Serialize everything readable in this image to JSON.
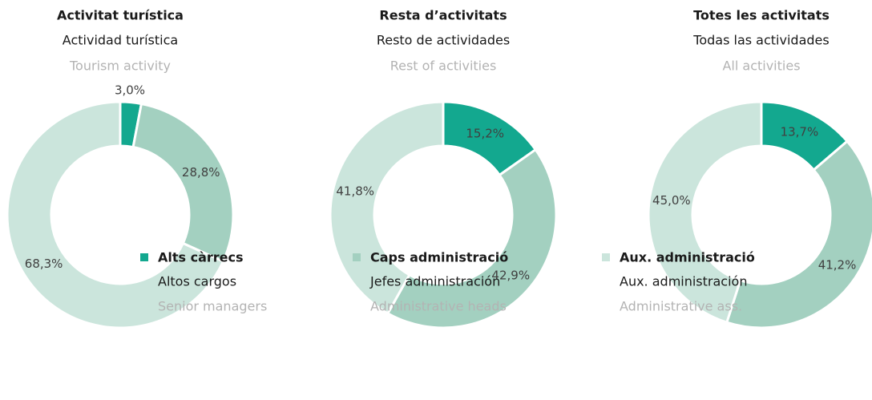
{
  "legend": [
    {
      "name": "Alts càrrecs",
      "name_es": "Altos cargos",
      "name_en": "Senior managers",
      "color": "#13a88f"
    },
    {
      "name": "Caps administració",
      "name_es": "Jefes administración",
      "name_en": "Administrative heads",
      "color": "#a3d0c0"
    },
    {
      "name": "Aux. administració",
      "name_es": "Aux. administración",
      "name_en": "Administrative ass.",
      "color": "#cbe5dc"
    }
  ],
  "chart_data": [
    {
      "type": "pie",
      "title": "Activitat turística",
      "subtitle": "Actividad turística",
      "subtitle_en": "Tourism activity",
      "values": [
        3.0,
        28.8,
        68.3
      ],
      "value_labels": [
        "3,0%",
        "28,8%",
        "68,3%"
      ]
    },
    {
      "type": "pie",
      "title": "Resta d’activitats",
      "subtitle": "Resto de actividades",
      "subtitle_en": "Rest of activities",
      "values": [
        15.2,
        42.9,
        41.8
      ],
      "value_labels": [
        "15,2%",
        "42,9%",
        "41,8%"
      ]
    },
    {
      "type": "pie",
      "title": "Totes les activitats",
      "subtitle": "Todas las actividades",
      "subtitle_en": "All activities",
      "values": [
        13.7,
        41.2,
        45.0
      ],
      "value_labels": [
        "13,7%",
        "41,2%",
        "45,0%"
      ]
    }
  ]
}
